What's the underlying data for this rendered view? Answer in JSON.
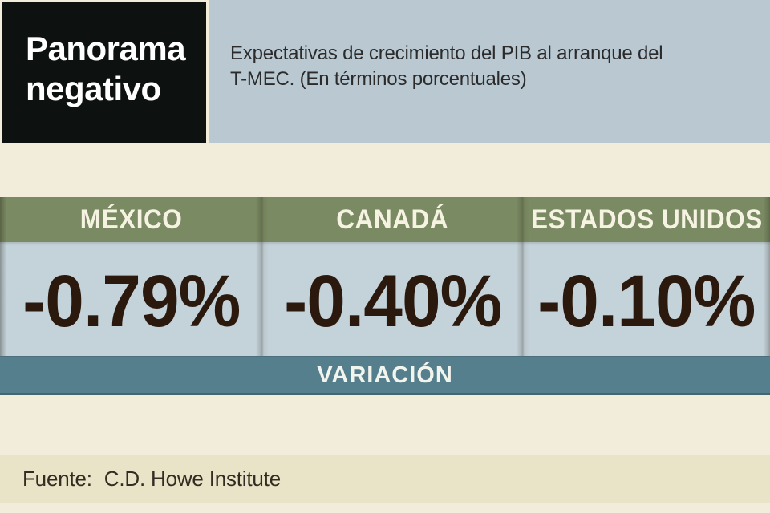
{
  "title_box": {
    "line1": "Panorama",
    "line2": "negativo"
  },
  "subtitle": {
    "line1": "Expectativas de crecimiento del PIB al arranque del",
    "line2": "T-MEC. (En términos porcentuales)"
  },
  "columns": [
    {
      "label": "MÉXICO",
      "value": "-0.79%"
    },
    {
      "label": "CANADÁ",
      "value": "-0.40%"
    },
    {
      "label": "ESTADOS UNIDOS",
      "value": "-0.10%"
    }
  ],
  "variation_band": {
    "label": "VARIACIÓN"
  },
  "source": {
    "label": "Fuente:",
    "name": "C.D. Howe Institute"
  },
  "colors": {
    "page_bg": "#f1edda",
    "title_box_bg": "#0d110f",
    "subtitle_bg": "#b9c8d1",
    "header_bg": "#7a8a62",
    "value_bg": "#c4d2d9",
    "band_bg": "#567f8d",
    "source_bg": "#e9e4c8",
    "title_text": "#ffffff",
    "subtitle_text": "#2b2b2b",
    "header_text": "#f6f3e3",
    "value_text": "#2b190e",
    "band_text": "#f2f4ee",
    "source_text": "#332c22"
  },
  "chart_data": {
    "type": "table",
    "title": "Panorama negativo",
    "subtitle": "Expectativas de crecimiento del PIB al arranque del T-MEC. (En términos porcentuales)",
    "categories": [
      "MÉXICO",
      "CANADÁ",
      "ESTADOS UNIDOS"
    ],
    "series": [
      {
        "name": "VARIACIÓN",
        "values": [
          -0.79,
          -0.4,
          -0.1
        ]
      }
    ],
    "value_labels": [
      "-0.79%",
      "-0.40%",
      "-0.10%"
    ],
    "unit": "percent",
    "source": "Fuente: C.D. Howe Institute"
  }
}
